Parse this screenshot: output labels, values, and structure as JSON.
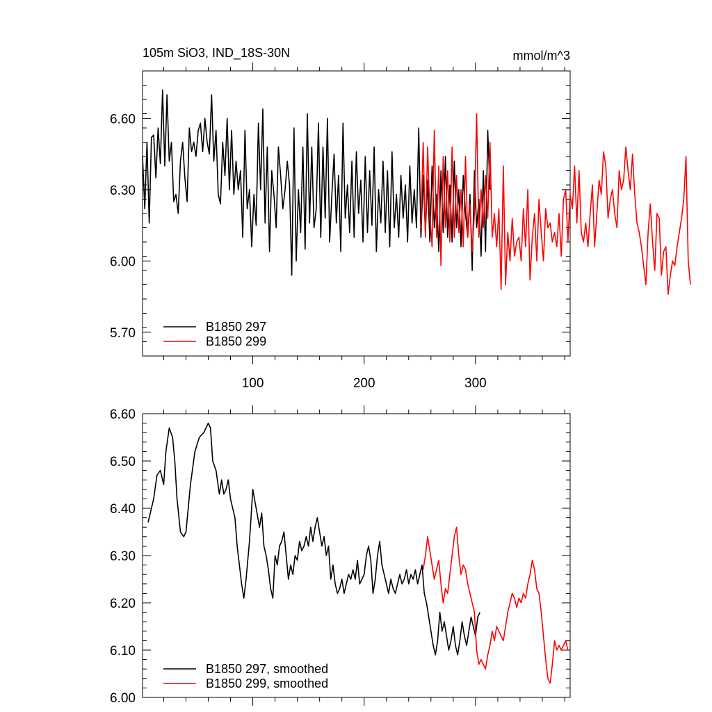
{
  "chart_data": [
    {
      "type": "line",
      "title": "105m SiO3, IND_18S-30N",
      "units": "mmol/m^3",
      "xlim": [
        1,
        385
      ],
      "ylim": [
        5.6,
        6.8
      ],
      "yticks": [
        5.7,
        6.0,
        6.3,
        6.6
      ],
      "ytick_labels": [
        "5.70",
        "6.00",
        "6.30",
        "6.60"
      ],
      "xticks": [
        100,
        200,
        300
      ],
      "xtick_labels": [
        "100",
        "200",
        "300"
      ],
      "legend_position": "bottom-left",
      "series": [
        {
          "name": "B1850 297",
          "color": "#000000",
          "x_start": 1,
          "x_step": 2,
          "values": [
            6.44,
            6.22,
            6.5,
            6.16,
            6.52,
            6.53,
            6.35,
            6.56,
            6.41,
            6.72,
            6.4,
            6.7,
            6.42,
            6.5,
            6.25,
            6.28,
            6.2,
            6.42,
            6.5,
            6.35,
            6.25,
            6.56,
            6.46,
            6.5,
            6.44,
            6.55,
            6.58,
            6.46,
            6.6,
            6.5,
            6.45,
            6.7,
            6.42,
            6.55,
            6.28,
            6.24,
            6.5,
            6.36,
            6.6,
            6.3,
            6.55,
            6.28,
            6.42,
            6.3,
            6.38,
            6.1,
            6.55,
            6.22,
            6.3,
            6.06,
            6.28,
            6.15,
            6.58,
            6.3,
            6.64,
            6.16,
            6.48,
            6.04,
            6.38,
            6.28,
            6.14,
            6.48,
            6.36,
            6.22,
            6.3,
            6.42,
            6.32,
            5.94,
            6.56,
            6.0,
            6.3,
            6.12,
            6.48,
            6.05,
            6.62,
            6.16,
            6.48,
            6.14,
            6.22,
            6.58,
            6.1,
            6.48,
            6.18,
            6.6,
            6.08,
            6.28,
            6.45,
            6.16,
            6.36,
            6.04,
            6.58,
            6.18,
            6.32,
            6.12,
            6.42,
            6.1,
            6.46,
            6.2,
            6.34,
            6.08,
            6.44,
            6.12,
            6.38,
            6.15,
            6.48,
            6.04,
            6.3,
            6.16,
            6.42,
            6.12,
            6.38,
            6.06,
            6.46,
            6.14,
            6.28,
            6.1,
            6.36,
            6.18,
            6.32,
            6.08,
            6.4,
            6.16,
            6.3,
            6.14,
            6.56,
            6.1,
            6.36,
            6.12,
            6.34,
            6.08,
            6.4,
            6.14,
            6.28,
            6.04,
            6.38,
            6.12,
            6.44,
            6.1,
            6.32,
            6.08,
            6.42,
            6.14,
            6.3,
            6.06,
            6.36,
            6.2,
            6.1,
            6.28,
            5.96,
            6.38,
            6.14,
            6.26,
            6.02,
            6.38,
            6.04,
            6.55,
            6.3
          ]
        },
        {
          "name": "B1850 299",
          "color": "#ff0000",
          "x_start": 251,
          "x_step": 2,
          "values": [
            6.14,
            6.5,
            6.1,
            6.48,
            6.2,
            6.06,
            6.55,
            6.1,
            6.4,
            5.98,
            6.44,
            6.14,
            6.38,
            6.08,
            6.48,
            6.1,
            6.36,
            6.12,
            6.3,
            6.06,
            6.44,
            6.1,
            6.24,
            6.04,
            6.2,
            6.62,
            6.1,
            6.3,
            6.14,
            6.36,
            6.18,
            6.5,
            6.1,
            6.2,
            6.06,
            6.22,
            5.88,
            6.4,
            5.9,
            6.12,
            6.0,
            6.18,
            6.02,
            6.08,
            6.1,
            6.0,
            6.22,
            6.06,
            6.3,
            5.92,
            6.1,
            6.2,
            6.0,
            6.26,
            6.12,
            6.0,
            6.22,
            6.14,
            6.16,
            6.08,
            6.12,
            6.06,
            6.2,
            6.02,
            6.26,
            6.3,
            6.08,
            6.28,
            6.22,
            6.4,
            6.16,
            6.38,
            6.12,
            6.08,
            6.16,
            6.06,
            6.2,
            6.32,
            6.06,
            6.2,
            6.34,
            6.28,
            6.46,
            6.4,
            6.18,
            6.26,
            6.3,
            6.2,
            6.14,
            6.38,
            6.3,
            6.34,
            6.48,
            6.38,
            6.3,
            6.45,
            6.28,
            6.16,
            6.12,
            6.06,
            5.98,
            5.9,
            6.12,
            6.24,
            6.08,
            5.96,
            6.2,
            6.18,
            5.94,
            6.04,
            6.06,
            5.86,
            5.94,
            6.0,
            5.98,
            6.06,
            6.12,
            6.18,
            6.26,
            6.44,
            6.0,
            5.9
          ]
        }
      ]
    },
    {
      "type": "line",
      "title": "",
      "xlim": [
        1,
        385
      ],
      "ylim": [
        6.0,
        6.6
      ],
      "yticks": [
        6.0,
        6.1,
        6.2,
        6.3,
        6.4,
        6.5,
        6.6
      ],
      "ytick_labels": [
        "6.00",
        "6.10",
        "6.20",
        "6.30",
        "6.40",
        "6.50",
        "6.60"
      ],
      "xticks": [
        100,
        200,
        300
      ],
      "legend_position": "bottom-left",
      "series": [
        {
          "name": "B1850 297, smoothed",
          "color": "#000000",
          "x": [
            6,
            9,
            11,
            14,
            17,
            20,
            22,
            25,
            28,
            30,
            32,
            35,
            38,
            40,
            44,
            48,
            52,
            56,
            60,
            62,
            64,
            67,
            70,
            72,
            74,
            76,
            78,
            80,
            82,
            84,
            86,
            88,
            90,
            92,
            94,
            97,
            100,
            103,
            106,
            108,
            110,
            112,
            114,
            116,
            118,
            120,
            122,
            124,
            126,
            128,
            130,
            132,
            134,
            136,
            138,
            140,
            142,
            144,
            146,
            148,
            150,
            152,
            154,
            156,
            158,
            160,
            162,
            164,
            166,
            168,
            170,
            172,
            174,
            176,
            178,
            180,
            182,
            184,
            186,
            188,
            190,
            192,
            194,
            196,
            198,
            200,
            202,
            204,
            206,
            208,
            210,
            212,
            214,
            216,
            218,
            220,
            222,
            224,
            226,
            228,
            230,
            232,
            234,
            236,
            238,
            240,
            242,
            244,
            246,
            248,
            250,
            252,
            254,
            256,
            258,
            260,
            262,
            264,
            266,
            268,
            270,
            272,
            274,
            276,
            278,
            280,
            282,
            284,
            286,
            288,
            290,
            292,
            294,
            296,
            298,
            300,
            302,
            304
          ],
          "values": [
            6.37,
            6.4,
            6.42,
            6.47,
            6.48,
            6.45,
            6.52,
            6.57,
            6.55,
            6.5,
            6.42,
            6.35,
            6.34,
            6.35,
            6.45,
            6.52,
            6.55,
            6.56,
            6.58,
            6.57,
            6.5,
            6.48,
            6.43,
            6.46,
            6.43,
            6.44,
            6.46,
            6.42,
            6.4,
            6.38,
            6.32,
            6.28,
            6.24,
            6.21,
            6.25,
            6.33,
            6.44,
            6.4,
            6.36,
            6.39,
            6.32,
            6.3,
            6.27,
            6.23,
            6.21,
            6.3,
            6.28,
            6.32,
            6.33,
            6.35,
            6.3,
            6.25,
            6.28,
            6.26,
            6.3,
            6.29,
            6.33,
            6.31,
            6.32,
            6.34,
            6.32,
            6.36,
            6.33,
            6.36,
            6.38,
            6.35,
            6.32,
            6.34,
            6.3,
            6.32,
            6.25,
            6.28,
            6.24,
            6.22,
            6.23,
            6.25,
            6.22,
            6.24,
            6.26,
            6.25,
            6.27,
            6.25,
            6.29,
            6.24,
            6.25,
            6.26,
            6.3,
            6.32,
            6.29,
            6.22,
            6.25,
            6.3,
            6.33,
            6.28,
            6.26,
            6.24,
            6.22,
            6.25,
            6.23,
            6.22,
            6.24,
            6.26,
            6.24,
            6.25,
            6.27,
            6.24,
            6.26,
            6.25,
            6.27,
            6.24,
            6.26,
            6.28,
            6.22,
            6.2,
            6.17,
            6.14,
            6.11,
            6.09,
            6.12,
            6.18,
            6.14,
            6.16,
            6.13,
            6.1,
            6.12,
            6.15,
            6.11,
            6.09,
            6.12,
            6.16,
            6.13,
            6.11,
            6.14,
            6.17,
            6.15,
            6.13,
            6.17,
            6.18
          ]
        },
        {
          "name": "B1850 299, smoothed",
          "color": "#ff0000",
          "x": [
            253,
            255,
            257,
            259,
            261,
            263,
            265,
            267,
            269,
            271,
            273,
            275,
            277,
            279,
            281,
            283,
            285,
            287,
            289,
            291,
            293,
            295,
            297,
            299,
            301,
            303,
            305,
            307,
            309,
            311,
            313,
            315,
            317,
            319,
            321,
            323,
            325,
            327,
            329,
            331,
            333,
            335,
            337,
            339,
            341,
            343,
            345,
            347,
            349,
            351,
            353,
            355,
            357,
            359,
            361,
            363,
            365,
            367,
            369,
            371,
            373,
            375,
            377,
            379,
            381,
            383
          ],
          "values": [
            6.27,
            6.3,
            6.34,
            6.31,
            6.28,
            6.25,
            6.27,
            6.29,
            6.24,
            6.2,
            6.23,
            6.22,
            6.26,
            6.3,
            6.34,
            6.36,
            6.3,
            6.26,
            6.28,
            6.27,
            6.24,
            6.22,
            6.2,
            6.18,
            6.1,
            6.07,
            6.08,
            6.07,
            6.06,
            6.09,
            6.11,
            6.14,
            6.12,
            6.15,
            6.14,
            6.13,
            6.12,
            6.15,
            6.18,
            6.2,
            6.22,
            6.21,
            6.19,
            6.21,
            6.2,
            6.22,
            6.21,
            6.24,
            6.26,
            6.29,
            6.27,
            6.23,
            6.22,
            6.18,
            6.13,
            6.08,
            6.04,
            6.03,
            6.07,
            6.12,
            6.1,
            6.11,
            6.1,
            6.11,
            6.12,
            6.1
          ]
        }
      ]
    }
  ]
}
